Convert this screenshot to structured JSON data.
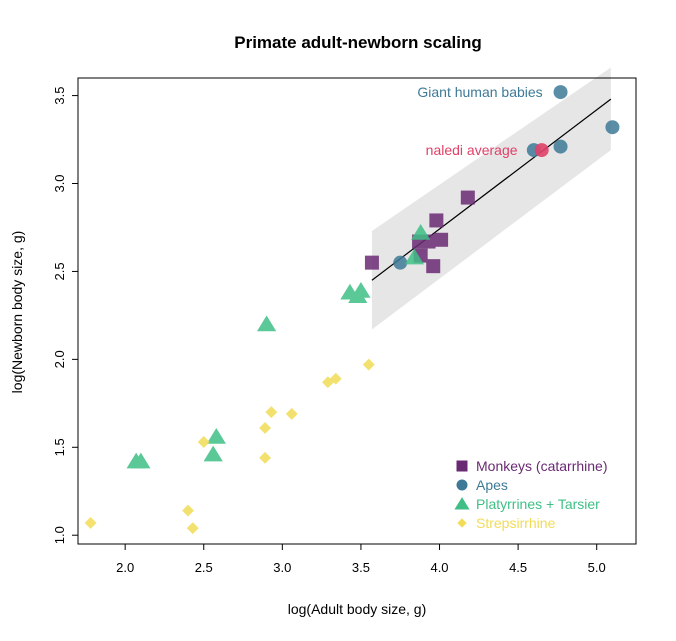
{
  "chart_data": {
    "type": "scatter",
    "title": "Primate adult-newborn scaling",
    "xlabel": "log(Adult body size, g)",
    "ylabel": "log(Newborn body size, g)",
    "xlim": [
      1.7,
      5.25
    ],
    "ylim": [
      0.95,
      3.6
    ],
    "xticks": [
      2.0,
      2.5,
      3.0,
      3.5,
      4.0,
      4.5,
      5.0
    ],
    "yticks": [
      1.0,
      1.5,
      2.0,
      2.5,
      3.0,
      3.5
    ],
    "xtick_labels": [
      "2.0",
      "2.5",
      "3.0",
      "3.5",
      "4.0",
      "4.5",
      "5.0"
    ],
    "ytick_labels": [
      "1.0",
      "1.5",
      "2.0",
      "2.5",
      "3.0",
      "3.5"
    ],
    "grid": false,
    "legend_position": "bottom-right",
    "regression": {
      "line": [
        [
          3.57,
          2.45
        ],
        [
          5.09,
          3.48
        ]
      ],
      "band_upper": [
        [
          3.57,
          2.73
        ],
        [
          5.09,
          3.66
        ]
      ],
      "band_lower": [
        [
          3.57,
          2.17
        ],
        [
          5.09,
          3.19
        ]
      ],
      "band_color": "#e6e6e6",
      "line_color": "#000000"
    },
    "series": [
      {
        "name": "Monkeys (catarrhine)",
        "marker": "square",
        "color": "#6a2a73",
        "points": [
          [
            3.57,
            2.55
          ],
          [
            3.87,
            2.67
          ],
          [
            3.88,
            2.59
          ],
          [
            3.93,
            2.67
          ],
          [
            3.96,
            2.53
          ],
          [
            3.98,
            2.79
          ],
          [
            4.01,
            2.68
          ],
          [
            4.18,
            2.92
          ]
        ]
      },
      {
        "name": "Apes",
        "marker": "circle",
        "color": "#3e7a97",
        "points": [
          [
            3.75,
            2.55
          ],
          [
            4.6,
            3.19
          ],
          [
            4.77,
            3.52
          ],
          [
            4.77,
            3.21
          ],
          [
            5.1,
            3.32
          ]
        ]
      },
      {
        "name": "Platyrrines + Tarsier",
        "marker": "triangle",
        "color": "#3fbf86",
        "points": [
          [
            2.07,
            1.42
          ],
          [
            2.1,
            1.42
          ],
          [
            2.56,
            1.46
          ],
          [
            2.58,
            1.56
          ],
          [
            2.9,
            2.2
          ],
          [
            3.43,
            2.38
          ],
          [
            3.48,
            2.36
          ],
          [
            3.5,
            2.39
          ],
          [
            3.84,
            2.58
          ],
          [
            3.88,
            2.72
          ]
        ]
      },
      {
        "name": "Strepsirrhine",
        "marker": "diamond",
        "color": "#f2dc57",
        "points": [
          [
            1.78,
            1.07
          ],
          [
            2.4,
            1.14
          ],
          [
            2.43,
            1.04
          ],
          [
            2.5,
            1.53
          ],
          [
            2.89,
            1.44
          ],
          [
            2.89,
            1.61
          ],
          [
            2.93,
            1.7
          ],
          [
            3.06,
            1.69
          ],
          [
            3.29,
            1.87
          ],
          [
            3.34,
            1.89
          ],
          [
            3.55,
            1.97
          ]
        ]
      }
    ],
    "highlight": {
      "name": "naledi average",
      "marker": "circle",
      "color": "#e04068",
      "point": [
        4.65,
        3.19
      ]
    },
    "annotations": [
      {
        "text": "Giant human babies",
        "at": [
          4.72,
          3.52
        ],
        "color": "#3e7a97"
      },
      {
        "text": "naledi average",
        "at": [
          4.56,
          3.19
        ],
        "color": "#e04068"
      }
    ]
  }
}
